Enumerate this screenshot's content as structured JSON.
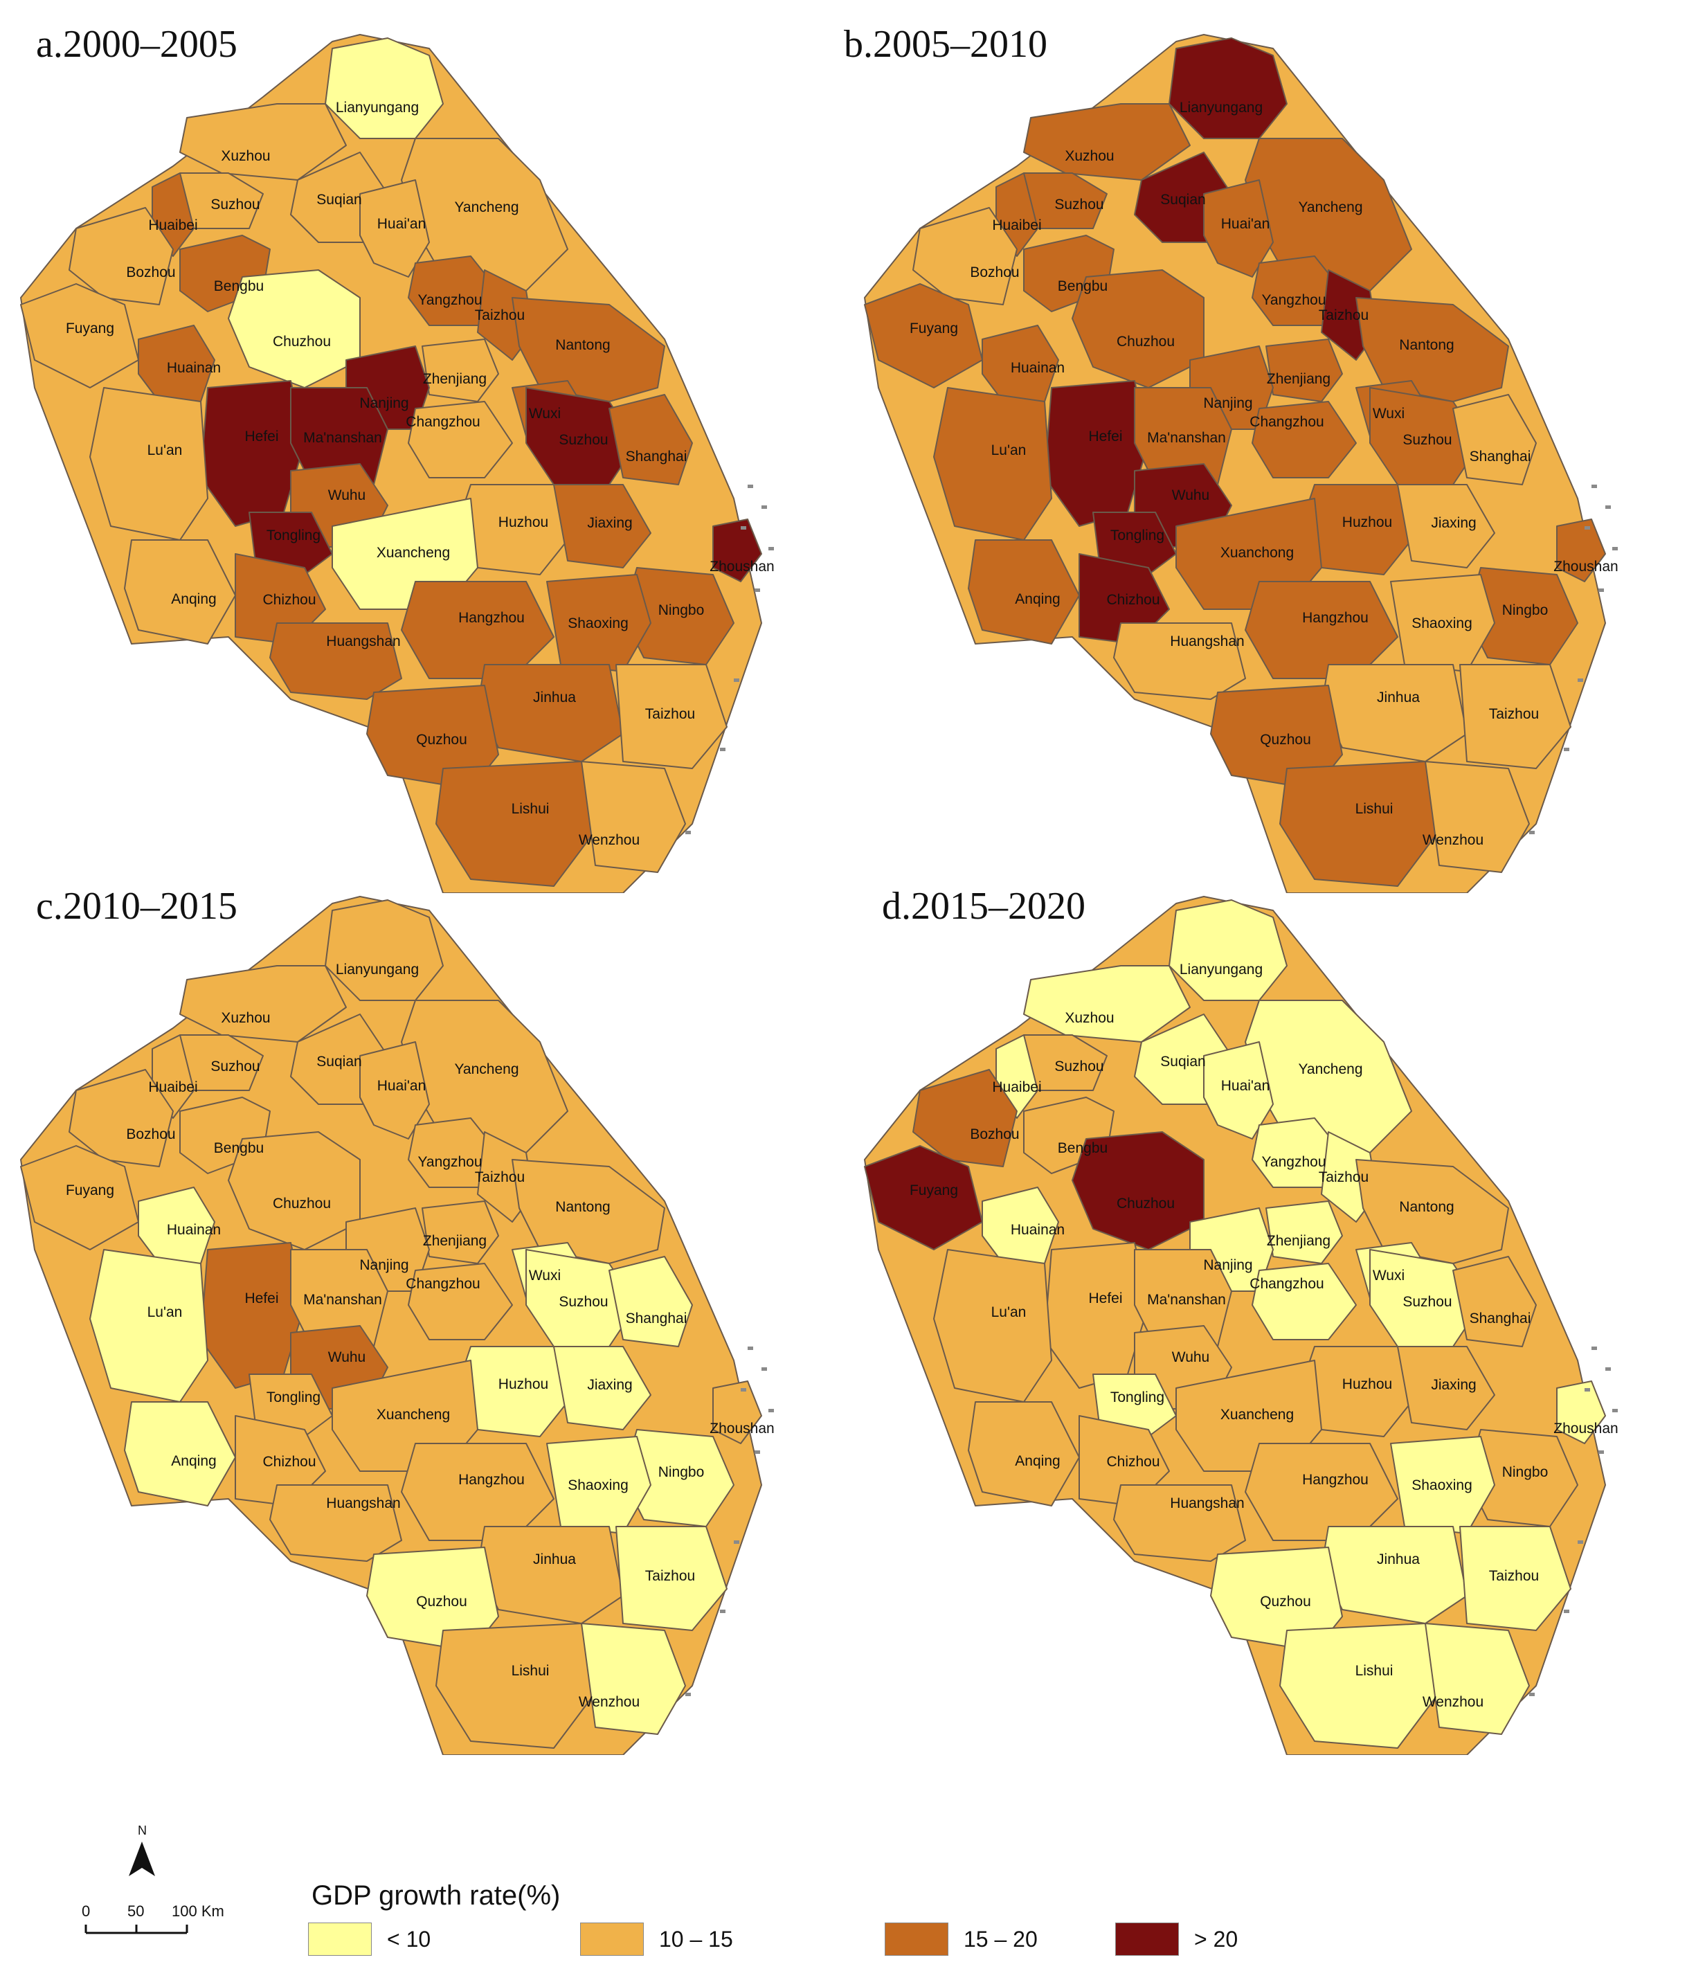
{
  "legend": {
    "title": "GDP growth rate(%)",
    "classes": [
      {
        "label": "< 10",
        "color": "#ffff99"
      },
      {
        "label": "10 – 15",
        "color": "#f0b24a"
      },
      {
        "label": "15 – 20",
        "color": "#c56a1f"
      },
      {
        "label": "> 20",
        "color": "#7a0f0f"
      }
    ]
  },
  "north_arrow": {
    "label": "N"
  },
  "scale_bar": {
    "ticks": [
      "0",
      "50",
      "100 Km"
    ]
  },
  "panels": [
    {
      "title": "a.2000–2005",
      "cities": [
        {
          "name": "Lianyungang",
          "cls": 0
        },
        {
          "name": "Xuzhou",
          "cls": 1
        },
        {
          "name": "Suzhou",
          "cls": 1
        },
        {
          "name": "Suqian",
          "cls": 1
        },
        {
          "name": "Yancheng",
          "cls": 1
        },
        {
          "name": "Huaibei",
          "cls": 2
        },
        {
          "name": "Huai'an",
          "cls": 1
        },
        {
          "name": "Bozhou",
          "cls": 1
        },
        {
          "name": "Bengbu",
          "cls": 2
        },
        {
          "name": "Fuyang",
          "cls": 1
        },
        {
          "name": "Chuzhou",
          "cls": 0
        },
        {
          "name": "Yangzhou",
          "cls": 2
        },
        {
          "name": "Taizhou",
          "cls": 2
        },
        {
          "name": "Nantong",
          "cls": 2
        },
        {
          "name": "Huainan",
          "cls": 2
        },
        {
          "name": "Zhenjiang",
          "cls": 1
        },
        {
          "name": "Nanjing",
          "cls": 3
        },
        {
          "name": "Wuxi",
          "cls": 2
        },
        {
          "name": "Hefei",
          "cls": 3
        },
        {
          "name": "Ma'nanshan",
          "cls": 3
        },
        {
          "name": "Changzhou",
          "cls": 1
        },
        {
          "name": "Suzhou",
          "cls": 3
        },
        {
          "name": "Shanghai",
          "cls": 2
        },
        {
          "name": "Lu'an",
          "cls": 1
        },
        {
          "name": "Wuhu",
          "cls": 2
        },
        {
          "name": "Huzhou",
          "cls": 1
        },
        {
          "name": "Jiaxing",
          "cls": 2
        },
        {
          "name": "Tongling",
          "cls": 3
        },
        {
          "name": "Xuancheng",
          "cls": 0
        },
        {
          "name": "Zhoushan",
          "cls": 3
        },
        {
          "name": "Anqing",
          "cls": 1
        },
        {
          "name": "Chizhou",
          "cls": 2
        },
        {
          "name": "Ningbo",
          "cls": 2
        },
        {
          "name": "Hangzhou",
          "cls": 2
        },
        {
          "name": "Shaoxing",
          "cls": 2
        },
        {
          "name": "Huangshan",
          "cls": 2
        },
        {
          "name": "Jinhua",
          "cls": 2
        },
        {
          "name": "Taizhou",
          "cls": 1
        },
        {
          "name": "Quzhou",
          "cls": 2
        },
        {
          "name": "Lishui",
          "cls": 2
        },
        {
          "name": "Wenzhou",
          "cls": 1
        }
      ]
    },
    {
      "title": "b.2005–2010",
      "cities": [
        {
          "name": "Lianyungang",
          "cls": 3
        },
        {
          "name": "Xuzhou",
          "cls": 2
        },
        {
          "name": "Suzhou",
          "cls": 2
        },
        {
          "name": "Suqian",
          "cls": 3
        },
        {
          "name": "Yancheng",
          "cls": 2
        },
        {
          "name": "Huaibei",
          "cls": 2
        },
        {
          "name": "Huai'an",
          "cls": 2
        },
        {
          "name": "Bozhou",
          "cls": 1
        },
        {
          "name": "Bengbu",
          "cls": 2
        },
        {
          "name": "Fuyang",
          "cls": 2
        },
        {
          "name": "Chuzhou",
          "cls": 2
        },
        {
          "name": "Yangzhou",
          "cls": 2
        },
        {
          "name": "Taizhou",
          "cls": 3
        },
        {
          "name": "Nantong",
          "cls": 2
        },
        {
          "name": "Huainan",
          "cls": 2
        },
        {
          "name": "Zhenjiang",
          "cls": 2
        },
        {
          "name": "Nanjing",
          "cls": 2
        },
        {
          "name": "Wuxi",
          "cls": 2
        },
        {
          "name": "Hefei",
          "cls": 3
        },
        {
          "name": "Ma'nanshan",
          "cls": 2
        },
        {
          "name": "Changzhou",
          "cls": 2
        },
        {
          "name": "Suzhou",
          "cls": 2
        },
        {
          "name": "Shanghai",
          "cls": 1
        },
        {
          "name": "Lu'an",
          "cls": 2
        },
        {
          "name": "Wuhu",
          "cls": 3
        },
        {
          "name": "Huzhou",
          "cls": 2
        },
        {
          "name": "Jiaxing",
          "cls": 1
        },
        {
          "name": "Tongling",
          "cls": 3
        },
        {
          "name": "Xuanchong",
          "cls": 2
        },
        {
          "name": "Zhoushan",
          "cls": 2
        },
        {
          "name": "Anqing",
          "cls": 2
        },
        {
          "name": "Chizhou",
          "cls": 3
        },
        {
          "name": "Ningbo",
          "cls": 2
        },
        {
          "name": "Hangzhou",
          "cls": 2
        },
        {
          "name": "Shaoxing",
          "cls": 1
        },
        {
          "name": "Huangshan",
          "cls": 1
        },
        {
          "name": "Jinhua",
          "cls": 1
        },
        {
          "name": "Taizhou",
          "cls": 1
        },
        {
          "name": "Quzhou",
          "cls": 2
        },
        {
          "name": "Lishui",
          "cls": 2
        },
        {
          "name": "Wenzhou",
          "cls": 1
        }
      ]
    },
    {
      "title": "c.2010–2015",
      "cities": [
        {
          "name": "Lianyungang",
          "cls": 1
        },
        {
          "name": "Xuzhou",
          "cls": 1
        },
        {
          "name": "Suzhou",
          "cls": 1
        },
        {
          "name": "Suqian",
          "cls": 1
        },
        {
          "name": "Yancheng",
          "cls": 1
        },
        {
          "name": "Huaibei",
          "cls": 1
        },
        {
          "name": "Huai'an",
          "cls": 1
        },
        {
          "name": "Bozhou",
          "cls": 1
        },
        {
          "name": "Bengbu",
          "cls": 1
        },
        {
          "name": "Fuyang",
          "cls": 1
        },
        {
          "name": "Chuzhou",
          "cls": 1
        },
        {
          "name": "Yangzhou",
          "cls": 1
        },
        {
          "name": "Taizhou",
          "cls": 1
        },
        {
          "name": "Nantong",
          "cls": 1
        },
        {
          "name": "Huainan",
          "cls": 0
        },
        {
          "name": "Zhenjiang",
          "cls": 1
        },
        {
          "name": "Nanjing",
          "cls": 1
        },
        {
          "name": "Wuxi",
          "cls": 0
        },
        {
          "name": "Hefei",
          "cls": 2
        },
        {
          "name": "Ma'nanshan",
          "cls": 1
        },
        {
          "name": "Changzhou",
          "cls": 1
        },
        {
          "name": "Suzhou",
          "cls": 0
        },
        {
          "name": "Shanghai",
          "cls": 0
        },
        {
          "name": "Lu'an",
          "cls": 0
        },
        {
          "name": "Wuhu",
          "cls": 2
        },
        {
          "name": "Huzhou",
          "cls": 0
        },
        {
          "name": "Jiaxing",
          "cls": 0
        },
        {
          "name": "Tongling",
          "cls": 1
        },
        {
          "name": "Xuancheng",
          "cls": 1
        },
        {
          "name": "Zhoushan",
          "cls": 1
        },
        {
          "name": "Anqing",
          "cls": 0
        },
        {
          "name": "Chizhou",
          "cls": 1
        },
        {
          "name": "Ningbo",
          "cls": 0
        },
        {
          "name": "Hangzhou",
          "cls": 1
        },
        {
          "name": "Shaoxing",
          "cls": 0
        },
        {
          "name": "Huangshan",
          "cls": 1
        },
        {
          "name": "Jinhua",
          "cls": 1
        },
        {
          "name": "Taizhou",
          "cls": 0
        },
        {
          "name": "Quzhou",
          "cls": 0
        },
        {
          "name": "Lishui",
          "cls": 1
        },
        {
          "name": "Wenzhou",
          "cls": 0
        }
      ]
    },
    {
      "title": "d.2015–2020",
      "cities": [
        {
          "name": "Lianyungang",
          "cls": 0
        },
        {
          "name": "Xuzhou",
          "cls": 0
        },
        {
          "name": "Suzhou",
          "cls": 1
        },
        {
          "name": "Suqian",
          "cls": 0
        },
        {
          "name": "Yancheng",
          "cls": 0
        },
        {
          "name": "Huaibei",
          "cls": 0
        },
        {
          "name": "Huai'an",
          "cls": 0
        },
        {
          "name": "Bozhou",
          "cls": 2
        },
        {
          "name": "Bengbu",
          "cls": 1
        },
        {
          "name": "Fuyang",
          "cls": 3
        },
        {
          "name": "Chuzhou",
          "cls": 3
        },
        {
          "name": "Yangzhou",
          "cls": 0
        },
        {
          "name": "Taizhou",
          "cls": 0
        },
        {
          "name": "Nantong",
          "cls": 1
        },
        {
          "name": "Huainan",
          "cls": 0
        },
        {
          "name": "Zhenjiang",
          "cls": 0
        },
        {
          "name": "Nanjing",
          "cls": 0
        },
        {
          "name": "Wuxi",
          "cls": 0
        },
        {
          "name": "Hefei",
          "cls": 1
        },
        {
          "name": "Ma'nanshan",
          "cls": 1
        },
        {
          "name": "Changzhou",
          "cls": 0
        },
        {
          "name": "Suzhou",
          "cls": 0
        },
        {
          "name": "Shanghai",
          "cls": 1
        },
        {
          "name": "Lu'an",
          "cls": 1
        },
        {
          "name": "Wuhu",
          "cls": 1
        },
        {
          "name": "Huzhou",
          "cls": 1
        },
        {
          "name": "Jiaxing",
          "cls": 1
        },
        {
          "name": "Tongling",
          "cls": 0
        },
        {
          "name": "Xuancheng",
          "cls": 1
        },
        {
          "name": "Zhoushan",
          "cls": 0
        },
        {
          "name": "Anqing",
          "cls": 1
        },
        {
          "name": "Chizhou",
          "cls": 1
        },
        {
          "name": "Ningbo",
          "cls": 1
        },
        {
          "name": "Hangzhou",
          "cls": 1
        },
        {
          "name": "Shaoxing",
          "cls": 0
        },
        {
          "name": "Huangshan",
          "cls": 1
        },
        {
          "name": "Jinhua",
          "cls": 0
        },
        {
          "name": "Taizhou",
          "cls": 0
        },
        {
          "name": "Quzhou",
          "cls": 0
        },
        {
          "name": "Lishui",
          "cls": 0
        },
        {
          "name": "Wenzhou",
          "cls": 0
        }
      ]
    }
  ]
}
